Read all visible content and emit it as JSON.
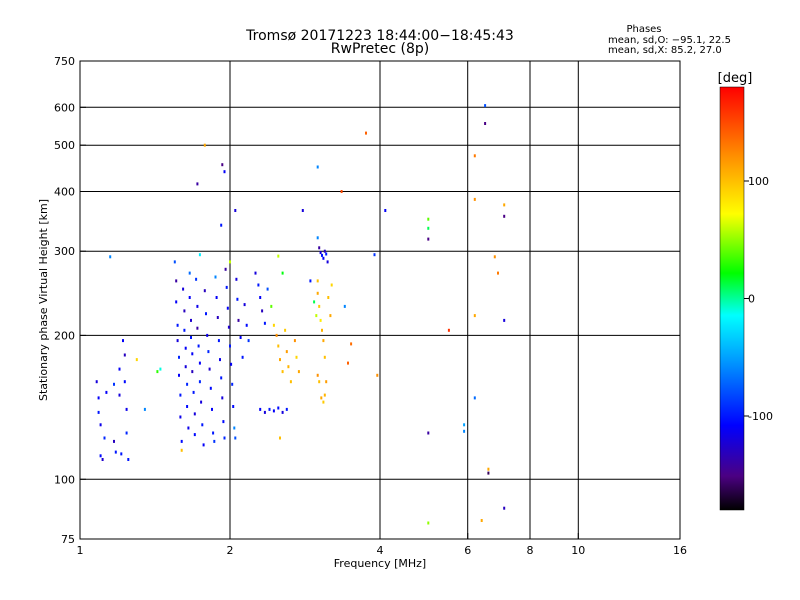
{
  "chart_data": {
    "type": "scatter",
    "title": "Tromsø 20171223 18:44:00−18:45:43",
    "subtitle": "RwPretec (8p)",
    "xlabel": "Frequency [MHz]",
    "ylabel": "Stationary phase Virtual Height [km]",
    "x_scale": "log",
    "y_scale": "log",
    "xlim": [
      1,
      16
    ],
    "ylim": [
      75,
      750
    ],
    "x_ticks": [
      {
        "value": 1,
        "label": "1"
      },
      {
        "value": 2,
        "label": "2"
      },
      {
        "value": 4,
        "label": "4"
      },
      {
        "value": 6,
        "label": "6"
      },
      {
        "value": 8,
        "label": "8"
      },
      {
        "value": 10,
        "label": "10"
      },
      {
        "value": 16,
        "label": "16"
      }
    ],
    "x_gridlines": [
      2,
      4,
      6,
      8,
      10
    ],
    "y_ticks": [
      {
        "value": 75,
        "label": "75"
      },
      {
        "value": 100,
        "label": "100"
      },
      {
        "value": 200,
        "label": "200"
      },
      {
        "value": 300,
        "label": "300"
      },
      {
        "value": 400,
        "label": "400"
      },
      {
        "value": 500,
        "label": "500"
      },
      {
        "value": 600,
        "label": "600"
      },
      {
        "value": 750,
        "label": "750"
      }
    ],
    "y_gridlines": [
      100,
      200,
      300,
      400,
      500,
      600
    ],
    "stats": {
      "heading": "Phases",
      "line_o": "mean, sd,O: −95.1, 22.5",
      "line_x": "mean, sd,X:  85.2, 27.0"
    },
    "colorbar": {
      "label": "[deg]",
      "min": -180,
      "max": 180,
      "ticks": [
        {
          "value": 100,
          "label": "100"
        },
        {
          "value": 0,
          "label": "0"
        },
        {
          "value": -100,
          "label": "-100"
        }
      ]
    },
    "points": [
      {
        "f": 1.08,
        "h": 160,
        "p": -120
      },
      {
        "f": 1.09,
        "h": 148,
        "p": -110
      },
      {
        "f": 1.09,
        "h": 138,
        "p": -100
      },
      {
        "f": 1.1,
        "h": 130,
        "p": -115
      },
      {
        "f": 1.1,
        "h": 112,
        "p": -105
      },
      {
        "f": 1.11,
        "h": 110,
        "p": -125
      },
      {
        "f": 1.12,
        "h": 122,
        "p": -95
      },
      {
        "f": 1.13,
        "h": 152,
        "p": -110
      },
      {
        "f": 1.17,
        "h": 158,
        "p": -90
      },
      {
        "f": 1.17,
        "h": 120,
        "p": -130
      },
      {
        "f": 1.18,
        "h": 114,
        "p": -100
      },
      {
        "f": 1.2,
        "h": 170,
        "p": -110
      },
      {
        "f": 1.2,
        "h": 150,
        "p": -120
      },
      {
        "f": 1.21,
        "h": 113,
        "p": -100
      },
      {
        "f": 1.22,
        "h": 195,
        "p": -110
      },
      {
        "f": 1.23,
        "h": 182,
        "p": -130
      },
      {
        "f": 1.23,
        "h": 160,
        "p": -105
      },
      {
        "f": 1.24,
        "h": 140,
        "p": -115
      },
      {
        "f": 1.24,
        "h": 125,
        "p": -95
      },
      {
        "f": 1.25,
        "h": 110,
        "p": -100
      },
      {
        "f": 1.15,
        "h": 292,
        "p": -60
      },
      {
        "f": 1.3,
        "h": 178,
        "p": 90
      },
      {
        "f": 1.35,
        "h": 140,
        "p": -60
      },
      {
        "f": 1.43,
        "h": 168,
        "p": 30
      },
      {
        "f": 1.45,
        "h": 170,
        "p": -10
      },
      {
        "f": 1.55,
        "h": 285,
        "p": -80
      },
      {
        "f": 1.56,
        "h": 260,
        "p": -140
      },
      {
        "f": 1.56,
        "h": 235,
        "p": -110
      },
      {
        "f": 1.57,
        "h": 210,
        "p": -100
      },
      {
        "f": 1.57,
        "h": 195,
        "p": -120
      },
      {
        "f": 1.58,
        "h": 180,
        "p": -95
      },
      {
        "f": 1.58,
        "h": 165,
        "p": -110
      },
      {
        "f": 1.59,
        "h": 150,
        "p": -100
      },
      {
        "f": 1.59,
        "h": 135,
        "p": -115
      },
      {
        "f": 1.6,
        "h": 120,
        "p": -105
      },
      {
        "f": 1.6,
        "h": 115,
        "p": 100
      },
      {
        "f": 1.61,
        "h": 250,
        "p": -120
      },
      {
        "f": 1.62,
        "h": 225,
        "p": -130
      },
      {
        "f": 1.62,
        "h": 205,
        "p": -100
      },
      {
        "f": 1.63,
        "h": 188,
        "p": -110
      },
      {
        "f": 1.63,
        "h": 172,
        "p": -120
      },
      {
        "f": 1.64,
        "h": 158,
        "p": -95
      },
      {
        "f": 1.64,
        "h": 142,
        "p": -105
      },
      {
        "f": 1.65,
        "h": 128,
        "p": -115
      },
      {
        "f": 1.66,
        "h": 270,
        "p": -70
      },
      {
        "f": 1.66,
        "h": 240,
        "p": -110
      },
      {
        "f": 1.67,
        "h": 215,
        "p": -125
      },
      {
        "f": 1.67,
        "h": 198,
        "p": -100
      },
      {
        "f": 1.68,
        "h": 183,
        "p": -110
      },
      {
        "f": 1.68,
        "h": 168,
        "p": -130
      },
      {
        "f": 1.69,
        "h": 152,
        "p": -100
      },
      {
        "f": 1.7,
        "h": 137,
        "p": -120
      },
      {
        "f": 1.7,
        "h": 124,
        "p": -105
      },
      {
        "f": 1.71,
        "h": 262,
        "p": -90
      },
      {
        "f": 1.72,
        "h": 230,
        "p": -115
      },
      {
        "f": 1.72,
        "h": 207,
        "p": -140
      },
      {
        "f": 1.73,
        "h": 190,
        "p": -100
      },
      {
        "f": 1.74,
        "h": 175,
        "p": -110
      },
      {
        "f": 1.74,
        "h": 160,
        "p": -95
      },
      {
        "f": 1.75,
        "h": 145,
        "p": -120
      },
      {
        "f": 1.76,
        "h": 130,
        "p": -100
      },
      {
        "f": 1.77,
        "h": 118,
        "p": -110
      },
      {
        "f": 1.78,
        "h": 248,
        "p": -130
      },
      {
        "f": 1.79,
        "h": 222,
        "p": -100
      },
      {
        "f": 1.8,
        "h": 200,
        "p": -115
      },
      {
        "f": 1.81,
        "h": 185,
        "p": -95
      },
      {
        "f": 1.82,
        "h": 170,
        "p": -125
      },
      {
        "f": 1.83,
        "h": 155,
        "p": -105
      },
      {
        "f": 1.84,
        "h": 140,
        "p": -110
      },
      {
        "f": 1.85,
        "h": 125,
        "p": -100
      },
      {
        "f": 1.86,
        "h": 120,
        "p": -90
      },
      {
        "f": 1.87,
        "h": 265,
        "p": -60
      },
      {
        "f": 1.88,
        "h": 240,
        "p": -110
      },
      {
        "f": 1.89,
        "h": 218,
        "p": -130
      },
      {
        "f": 1.9,
        "h": 195,
        "p": -100
      },
      {
        "f": 1.91,
        "h": 178,
        "p": -115
      },
      {
        "f": 1.92,
        "h": 163,
        "p": -100
      },
      {
        "f": 1.93,
        "h": 148,
        "p": -120
      },
      {
        "f": 1.94,
        "h": 132,
        "p": -105
      },
      {
        "f": 1.95,
        "h": 122,
        "p": -95
      },
      {
        "f": 1.96,
        "h": 275,
        "p": -140
      },
      {
        "f": 1.97,
        "h": 252,
        "p": -100
      },
      {
        "f": 1.98,
        "h": 228,
        "p": -110
      },
      {
        "f": 1.99,
        "h": 208,
        "p": -125
      },
      {
        "f": 2.0,
        "h": 190,
        "p": -100
      },
      {
        "f": 2.01,
        "h": 174,
        "p": -110
      },
      {
        "f": 2.02,
        "h": 158,
        "p": -95
      },
      {
        "f": 2.03,
        "h": 142,
        "p": -105
      },
      {
        "f": 2.04,
        "h": 128,
        "p": -60
      },
      {
        "f": 2.05,
        "h": 122,
        "p": -80
      },
      {
        "f": 2.06,
        "h": 262,
        "p": -120
      },
      {
        "f": 2.07,
        "h": 238,
        "p": -100
      },
      {
        "f": 2.08,
        "h": 215,
        "p": -140
      },
      {
        "f": 2.1,
        "h": 198,
        "p": -110
      },
      {
        "f": 2.12,
        "h": 180,
        "p": -100
      },
      {
        "f": 2.14,
        "h": 232,
        "p": -120
      },
      {
        "f": 2.16,
        "h": 210,
        "p": -105
      },
      {
        "f": 2.18,
        "h": 195,
        "p": -90
      },
      {
        "f": 1.72,
        "h": 415,
        "p": -140
      },
      {
        "f": 1.78,
        "h": 500,
        "p": 110
      },
      {
        "f": 1.93,
        "h": 455,
        "p": -150
      },
      {
        "f": 1.95,
        "h": 440,
        "p": -110
      },
      {
        "f": 1.92,
        "h": 340,
        "p": -100
      },
      {
        "f": 2.05,
        "h": 365,
        "p": -120
      },
      {
        "f": 1.74,
        "h": 295,
        "p": -20
      },
      {
        "f": 2.0,
        "h": 285,
        "p": 60
      },
      {
        "f": 2.25,
        "h": 270,
        "p": -120
      },
      {
        "f": 2.28,
        "h": 255,
        "p": -100
      },
      {
        "f": 2.3,
        "h": 240,
        "p": -110
      },
      {
        "f": 2.32,
        "h": 225,
        "p": -130
      },
      {
        "f": 2.35,
        "h": 212,
        "p": -100
      },
      {
        "f": 2.3,
        "h": 140,
        "p": -110
      },
      {
        "f": 2.35,
        "h": 138,
        "p": -120
      },
      {
        "f": 2.4,
        "h": 140,
        "p": -100
      },
      {
        "f": 2.45,
        "h": 139,
        "p": -110
      },
      {
        "f": 2.5,
        "h": 141,
        "p": -105
      },
      {
        "f": 2.55,
        "h": 138,
        "p": -120
      },
      {
        "f": 2.6,
        "h": 140,
        "p": -100
      },
      {
        "f": 2.38,
        "h": 250,
        "p": -80
      },
      {
        "f": 2.42,
        "h": 230,
        "p": 40
      },
      {
        "f": 2.45,
        "h": 210,
        "p": 90
      },
      {
        "f": 2.48,
        "h": 200,
        "p": 120
      },
      {
        "f": 2.5,
        "h": 190,
        "p": 100
      },
      {
        "f": 2.52,
        "h": 178,
        "p": 110
      },
      {
        "f": 2.55,
        "h": 168,
        "p": 100
      },
      {
        "f": 2.58,
        "h": 205,
        "p": 95
      },
      {
        "f": 2.6,
        "h": 185,
        "p": 115
      },
      {
        "f": 2.62,
        "h": 172,
        "p": 105
      },
      {
        "f": 2.65,
        "h": 160,
        "p": 100
      },
      {
        "f": 2.7,
        "h": 195,
        "p": 120
      },
      {
        "f": 2.72,
        "h": 180,
        "p": 90
      },
      {
        "f": 2.75,
        "h": 168,
        "p": 110
      },
      {
        "f": 2.5,
        "h": 293,
        "p": 60
      },
      {
        "f": 2.55,
        "h": 270,
        "p": 20
      },
      {
        "f": 2.52,
        "h": 122,
        "p": 100
      },
      {
        "f": 2.8,
        "h": 365,
        "p": -120
      },
      {
        "f": 2.9,
        "h": 260,
        "p": -100
      },
      {
        "f": 2.95,
        "h": 235,
        "p": 10
      },
      {
        "f": 2.98,
        "h": 220,
        "p": 60
      },
      {
        "f": 3.0,
        "h": 320,
        "p": -60
      },
      {
        "f": 3.02,
        "h": 305,
        "p": -140
      },
      {
        "f": 3.04,
        "h": 298,
        "p": -120
      },
      {
        "f": 3.06,
        "h": 294,
        "p": -100
      },
      {
        "f": 3.08,
        "h": 290,
        "p": -110
      },
      {
        "f": 3.1,
        "h": 300,
        "p": -130
      },
      {
        "f": 3.12,
        "h": 296,
        "p": -100
      },
      {
        "f": 3.14,
        "h": 285,
        "p": -120
      },
      {
        "f": 3.0,
        "h": 450,
        "p": -60
      },
      {
        "f": 3.0,
        "h": 260,
        "p": 100
      },
      {
        "f": 3.0,
        "h": 245,
        "p": 110
      },
      {
        "f": 3.02,
        "h": 230,
        "p": 95
      },
      {
        "f": 3.04,
        "h": 215,
        "p": 80
      },
      {
        "f": 3.06,
        "h": 205,
        "p": 105
      },
      {
        "f": 3.08,
        "h": 195,
        "p": 110
      },
      {
        "f": 3.1,
        "h": 180,
        "p": 100
      },
      {
        "f": 3.0,
        "h": 165,
        "p": 120
      },
      {
        "f": 3.02,
        "h": 160,
        "p": 100
      },
      {
        "f": 3.05,
        "h": 148,
        "p": 110
      },
      {
        "f": 3.08,
        "h": 145,
        "p": 95
      },
      {
        "f": 3.1,
        "h": 150,
        "p": 105
      },
      {
        "f": 3.12,
        "h": 160,
        "p": 115
      },
      {
        "f": 3.15,
        "h": 240,
        "p": 100
      },
      {
        "f": 3.18,
        "h": 220,
        "p": 110
      },
      {
        "f": 3.2,
        "h": 255,
        "p": 90
      },
      {
        "f": 3.35,
        "h": 400,
        "p": 150
      },
      {
        "f": 3.4,
        "h": 230,
        "p": -60
      },
      {
        "f": 3.45,
        "h": 175,
        "p": 140
      },
      {
        "f": 3.5,
        "h": 192,
        "p": 135
      },
      {
        "f": 3.75,
        "h": 530,
        "p": 140
      },
      {
        "f": 3.9,
        "h": 295,
        "p": -90
      },
      {
        "f": 3.95,
        "h": 165,
        "p": 120
      },
      {
        "f": 4.1,
        "h": 365,
        "p": -110
      },
      {
        "f": 5.0,
        "h": 350,
        "p": 40
      },
      {
        "f": 5.0,
        "h": 335,
        "p": 10
      },
      {
        "f": 5.0,
        "h": 318,
        "p": -150
      },
      {
        "f": 5.0,
        "h": 125,
        "p": -140
      },
      {
        "f": 5.0,
        "h": 81,
        "p": 50
      },
      {
        "f": 5.5,
        "h": 205,
        "p": 160
      },
      {
        "f": 5.9,
        "h": 130,
        "p": -50
      },
      {
        "f": 5.9,
        "h": 126,
        "p": -60
      },
      {
        "f": 6.2,
        "h": 475,
        "p": 130
      },
      {
        "f": 6.2,
        "h": 385,
        "p": 120
      },
      {
        "f": 6.2,
        "h": 220,
        "p": 110
      },
      {
        "f": 6.2,
        "h": 148,
        "p": -70
      },
      {
        "f": 6.4,
        "h": 82,
        "p": 110
      },
      {
        "f": 6.5,
        "h": 605,
        "p": -80
      },
      {
        "f": 6.5,
        "h": 555,
        "p": -150
      },
      {
        "f": 6.6,
        "h": 105,
        "p": 110
      },
      {
        "f": 6.6,
        "h": 103,
        "p": -160
      },
      {
        "f": 6.8,
        "h": 292,
        "p": 120
      },
      {
        "f": 6.9,
        "h": 270,
        "p": 130
      },
      {
        "f": 7.1,
        "h": 375,
        "p": 110
      },
      {
        "f": 7.1,
        "h": 355,
        "p": -150
      },
      {
        "f": 7.1,
        "h": 215,
        "p": -120
      },
      {
        "f": 7.1,
        "h": 87,
        "p": -130
      }
    ]
  }
}
